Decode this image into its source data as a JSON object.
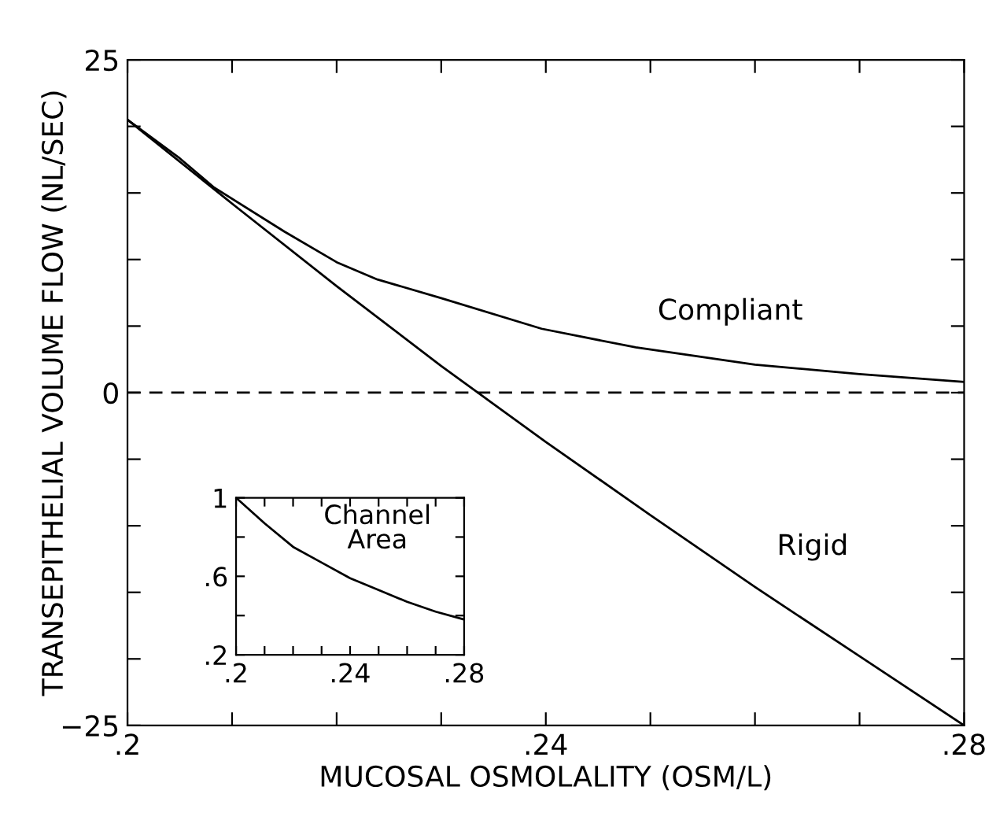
{
  "chart_data": [
    {
      "type": "line",
      "xlabel": "MUCOSAL OSMOLALITY (OSM/L)",
      "ylabel": "TRANSEPITHELIAL VOLUME FLOW (NL/SEC)",
      "xlim": [
        0.2,
        0.28
      ],
      "ylim": [
        -25,
        25
      ],
      "xticks": [
        {
          "value": 0.2,
          "label": ".2"
        },
        {
          "value": 0.21,
          "label": null
        },
        {
          "value": 0.22,
          "label": null
        },
        {
          "value": 0.23,
          "label": null
        },
        {
          "value": 0.24,
          "label": ".24"
        },
        {
          "value": 0.25,
          "label": null
        },
        {
          "value": 0.26,
          "label": null
        },
        {
          "value": 0.27,
          "label": null
        },
        {
          "value": 0.28,
          "label": ".28"
        }
      ],
      "yticks": [
        {
          "value": -25,
          "label": "−25"
        },
        {
          "value": -20,
          "label": null
        },
        {
          "value": -15,
          "label": null
        },
        {
          "value": -10,
          "label": null
        },
        {
          "value": -5,
          "label": null
        },
        0,
        {
          "value": 5,
          "label": null
        },
        {
          "value": 10,
          "label": null
        },
        {
          "value": 15,
          "label": null
        },
        {
          "value": 20,
          "label": null
        },
        25
      ],
      "ref_lines": [
        {
          "axis": "y",
          "value": 0,
          "line_style": "dashed",
          "color": "#000000"
        }
      ],
      "grid": false,
      "legend": false,
      "marker": "none",
      "line_style": "solid",
      "series": [
        {
          "name": "Compliant",
          "color": "#000000",
          "x": [
            0.2,
            0.205,
            0.2083,
            0.215,
            0.22,
            0.2239,
            0.23,
            0.2396,
            0.2486,
            0.26,
            0.27,
            0.28
          ],
          "values": [
            20.5,
            17.6,
            15.4,
            12.1,
            9.8,
            8.5,
            7.1,
            4.8,
            3.4,
            2.1,
            1.4,
            0.8
          ]
        },
        {
          "name": "Rigid",
          "color": "#000000",
          "x": [
            0.2,
            0.21,
            0.22,
            0.23,
            0.2335,
            0.24,
            0.25,
            0.26,
            0.27,
            0.28
          ],
          "values": [
            20.5,
            14.2,
            8.0,
            2.0,
            0,
            -3.7,
            -9.2,
            -14.6,
            -19.8,
            -25
          ]
        }
      ]
    },
    {
      "type": "line",
      "annotations": [
        "Channel\nArea"
      ],
      "xlim": [
        0.2,
        0.28
      ],
      "ylim": [
        0.2,
        1
      ],
      "xticks": [
        {
          "value": 0.2,
          "label": ".2"
        },
        {
          "value": 0.21,
          "label": null
        },
        {
          "value": 0.22,
          "label": null
        },
        {
          "value": 0.23,
          "label": null
        },
        {
          "value": 0.24,
          "label": ".24"
        },
        {
          "value": 0.25,
          "label": null
        },
        {
          "value": 0.26,
          "label": null
        },
        {
          "value": 0.27,
          "label": null
        },
        {
          "value": 0.28,
          "label": ".28"
        }
      ],
      "yticks": [
        {
          "value": 0.2,
          "label": ".2"
        },
        {
          "value": 0.4,
          "label": null
        },
        {
          "value": 0.6,
          "label": ".6"
        },
        {
          "value": 0.8,
          "label": null
        },
        1
      ],
      "grid": false,
      "legend": false,
      "marker": "none",
      "line_style": "solid",
      "series": [
        {
          "color": "#000000",
          "x": [
            0.2,
            0.21,
            0.22,
            0.23,
            0.24,
            0.25,
            0.26,
            0.27,
            0.28
          ],
          "values": [
            1.0,
            0.87,
            0.75,
            0.67,
            0.59,
            0.53,
            0.47,
            0.42,
            0.38
          ]
        }
      ]
    }
  ]
}
